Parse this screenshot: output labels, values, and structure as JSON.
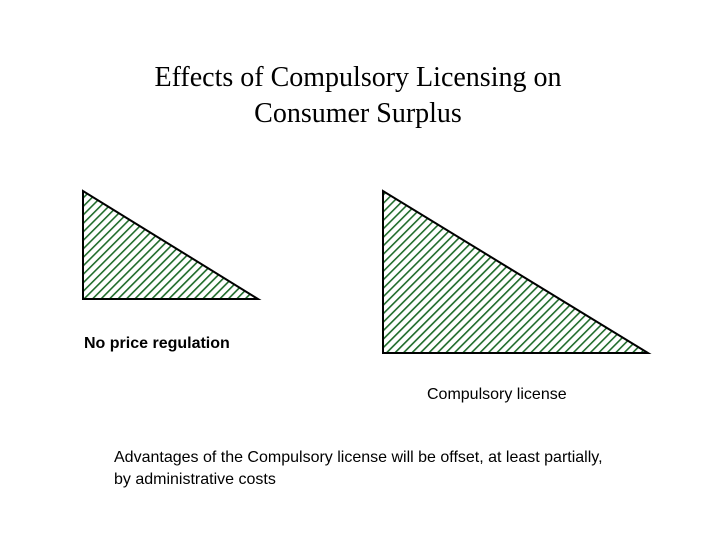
{
  "title": {
    "lines": [
      "Effects of Compulsory Licensing on",
      "Consumer Surplus"
    ]
  },
  "diagrams": [
    {
      "label": "No price regulation"
    },
    {
      "label": "Compulsory license"
    }
  ],
  "note": {
    "lines": [
      "Advantages of the Compulsory license will be offset, at least partially,",
      "by administrative costs"
    ]
  }
}
